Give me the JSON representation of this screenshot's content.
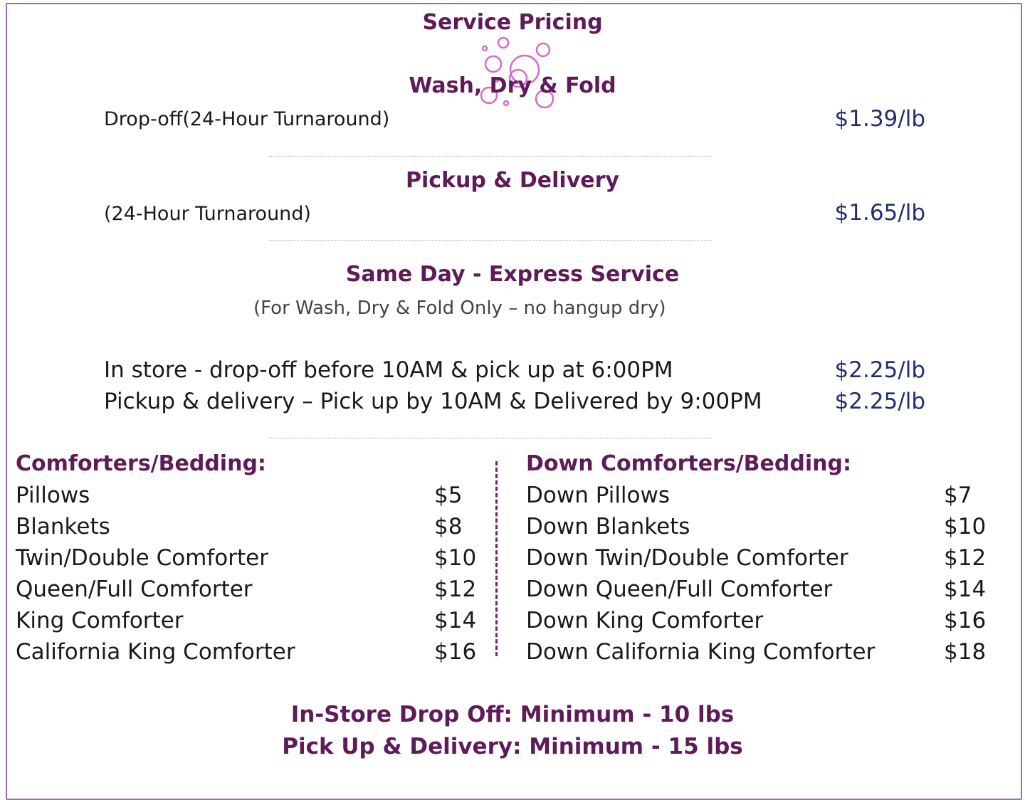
{
  "title": "Service Pricing",
  "wash_dry_fold": {
    "heading": "Wash, Dry & Fold",
    "label": "Drop-off(24-Hour Turnaround)",
    "price": "$1.39/lb"
  },
  "pickup_delivery": {
    "heading": "Pickup & Delivery",
    "label": "(24-Hour Turnaround)",
    "price": "$1.65/lb"
  },
  "same_day": {
    "heading": "Same Day - Express Service",
    "note": "(For Wash, Dry & Fold Only – no hangup dry)",
    "rows": [
      {
        "label": "In store - drop-off before 10AM & pick up at 6:00PM",
        "price": "$2.25/lb"
      },
      {
        "label": "Pickup & delivery – Pick up by 10AM & Delivered by 9:00PM",
        "price": "$2.25/lb"
      }
    ]
  },
  "comforters": {
    "heading": "Comforters/Bedding:",
    "items": [
      {
        "label": "Pillows",
        "price": "$5"
      },
      {
        "label": "Blankets",
        "price": "$8"
      },
      {
        "label": "Twin/Double Comforter",
        "price": "$10"
      },
      {
        "label": "Queen/Full Comforter",
        "price": "$12"
      },
      {
        "label": "King Comforter",
        "price": "$14"
      },
      {
        "label": "California King Comforter",
        "price": "$16"
      }
    ]
  },
  "down_comforters": {
    "heading": "Down Comforters/Bedding:",
    "items": [
      {
        "label": "Down Pillows",
        "price": "$7"
      },
      {
        "label": "Down Blankets",
        "price": "$10"
      },
      {
        "label": "Down Twin/Double Comforter",
        "price": "$12"
      },
      {
        "label": "Down Queen/Full Comforter",
        "price": "$14"
      },
      {
        "label": "Down King Comforter",
        "price": "$16"
      },
      {
        "label": "Down California King Comforter",
        "price": "$18"
      }
    ]
  },
  "minimums": [
    "In-Store Drop Off: Minimum  - 10 lbs",
    "Pick Up & Delivery: Minimum  - 15 lbs"
  ],
  "colors": {
    "heading": "#5e1a59",
    "price": "#1f2f72",
    "bubbles": "#d46ad0",
    "border": "#9a6cc0"
  },
  "decoration": "soap-bubbles-icon"
}
